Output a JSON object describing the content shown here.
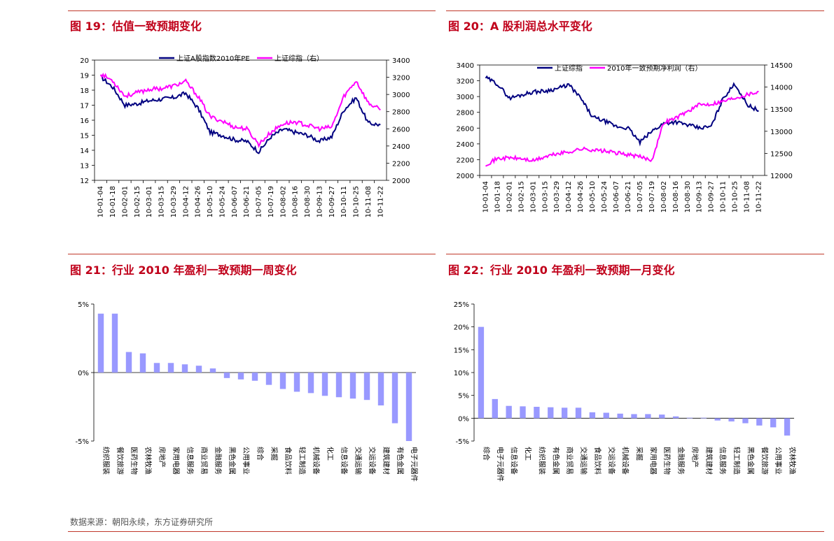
{
  "colors": {
    "accent": "#c0001a",
    "navy": "#000080",
    "magenta": "#ff00ff",
    "bar": "#9999ff"
  },
  "sections": [
    {
      "title": "图 19：估值一致预期变化"
    },
    {
      "title": "图 20：A 股利润总水平变化"
    },
    {
      "title": "图 21：行业 2010 年盈利一致预期一周变化"
    },
    {
      "title": "图 22：行业 2010 年盈利一致预期一月变化"
    }
  ],
  "footer": {
    "source": "数据来源：朝阳永续，东方证券研究所"
  },
  "chart_data": [
    {
      "type": "line",
      "dates": [
        "10-01-04",
        "10-01-18",
        "10-02-01",
        "10-02-15",
        "10-03-01",
        "10-03-15",
        "10-03-29",
        "10-04-12",
        "10-04-26",
        "10-05-10",
        "10-05-24",
        "10-06-07",
        "10-06-21",
        "10-07-05",
        "10-07-19",
        "10-08-02",
        "10-08-16",
        "10-08-30",
        "10-09-13",
        "10-09-27",
        "10-10-11",
        "10-10-25",
        "10-11-08",
        "10-11-22"
      ],
      "series": [
        {
          "name": "上证A股指数2010年PE",
          "axis": "left",
          "color": "#000080",
          "values": [
            18.9,
            18.2,
            17.0,
            17.1,
            17.3,
            17.4,
            17.5,
            17.8,
            16.8,
            15.2,
            15.0,
            14.7,
            14.6,
            13.9,
            14.9,
            15.4,
            15.2,
            15.0,
            14.6,
            14.9,
            16.7,
            17.5,
            15.8,
            15.7
          ]
        },
        {
          "name": "上证综指（右）",
          "axis": "right",
          "color": "#ff00ff",
          "values": [
            3240,
            3160,
            2980,
            3020,
            3060,
            3070,
            3100,
            3150,
            2980,
            2740,
            2690,
            2620,
            2600,
            2420,
            2560,
            2660,
            2680,
            2640,
            2600,
            2620,
            2980,
            3160,
            2900,
            2820
          ]
        }
      ],
      "ylim_left": [
        12,
        20
      ],
      "yticks_left": [
        12,
        13,
        14,
        15,
        16,
        17,
        18,
        19,
        20
      ],
      "ylim_right": [
        2000,
        3400
      ],
      "yticks_right": [
        2000,
        2200,
        2400,
        2600,
        2800,
        3000,
        3200,
        3400
      ]
    },
    {
      "type": "line",
      "dates": [
        "10-01-04",
        "10-01-18",
        "10-02-01",
        "10-02-15",
        "10-03-01",
        "10-03-15",
        "10-03-29",
        "10-04-12",
        "10-04-26",
        "10-05-10",
        "10-05-24",
        "10-06-07",
        "10-06-21",
        "10-07-05",
        "10-07-19",
        "10-08-02",
        "10-08-16",
        "10-08-30",
        "10-09-13",
        "10-09-27",
        "10-10-11",
        "10-10-25",
        "10-11-08",
        "10-11-22"
      ],
      "series": [
        {
          "name": "上证综指",
          "axis": "left",
          "color": "#000080",
          "values": [
            3240,
            3160,
            2980,
            3020,
            3060,
            3070,
            3100,
            3150,
            2980,
            2740,
            2690,
            2620,
            2600,
            2420,
            2560,
            2660,
            2680,
            2640,
            2600,
            2620,
            2980,
            3160,
            2900,
            2820
          ]
        },
        {
          "name": "2010年一致预期净利润（右）",
          "axis": "right",
          "color": "#ff00ff",
          "values": [
            12250,
            12380,
            12400,
            12380,
            12330,
            12420,
            12490,
            12530,
            12600,
            12580,
            12550,
            12510,
            12470,
            12420,
            12350,
            13200,
            13300,
            13450,
            13600,
            13620,
            13680,
            13760,
            13830,
            13900
          ]
        }
      ],
      "ylim_left": [
        2000,
        3400
      ],
      "yticks_left": [
        2000,
        2200,
        2400,
        2600,
        2800,
        3000,
        3200,
        3400
      ],
      "ylim_right": [
        12000,
        14500
      ],
      "yticks_right": [
        12000,
        12500,
        13000,
        13500,
        14000,
        14500
      ]
    },
    {
      "type": "bar",
      "categories": [
        "纺织服装",
        "餐饮旅游",
        "医药生物",
        "农林牧渔",
        "房地产",
        "家用电器",
        "信息服务",
        "商业贸易",
        "金融服务",
        "黑色金属",
        "公用事业",
        "综合",
        "采掘",
        "食品饮料",
        "轻工制造",
        "机械设备",
        "化工",
        "信息设备",
        "交通运输",
        "交运设备",
        "建筑建材",
        "有色金属",
        "电子元器件"
      ],
      "values": [
        4.3,
        4.3,
        1.5,
        1.4,
        0.7,
        0.7,
        0.6,
        0.5,
        0.3,
        -0.4,
        -0.5,
        -0.6,
        -0.9,
        -1.2,
        -1.4,
        -1.5,
        -1.7,
        -1.8,
        -1.9,
        -2.0,
        -2.4,
        -3.7,
        -5.0
      ],
      "ylim": [
        -5,
        5
      ],
      "yticks": [
        "5%",
        "0%",
        "-5%"
      ]
    },
    {
      "type": "bar",
      "categories": [
        "综合",
        "电子元器件",
        "信息设备",
        "化工",
        "纺织服装",
        "有色金属",
        "商业贸易",
        "交通运输",
        "食品饮料",
        "交运设备",
        "机械设备",
        "采掘",
        "家用电器",
        "医药生物",
        "金融服务",
        "房地产",
        "建筑建材",
        "信息服务",
        "轻工制造",
        "黑色金属",
        "餐饮旅游",
        "公用事业",
        "农林牧渔"
      ],
      "values": [
        20.0,
        4.2,
        2.7,
        2.6,
        2.5,
        2.4,
        2.3,
        2.3,
        1.3,
        1.2,
        1.0,
        0.9,
        0.9,
        0.8,
        0.4,
        0.1,
        0.1,
        -0.5,
        -0.7,
        -1.1,
        -1.6,
        -2.0,
        -3.8
      ],
      "ylim": [
        -5,
        25
      ],
      "yticks": [
        "25%",
        "20%",
        "15%",
        "10%",
        "5%",
        "0%",
        "-5%"
      ]
    }
  ]
}
